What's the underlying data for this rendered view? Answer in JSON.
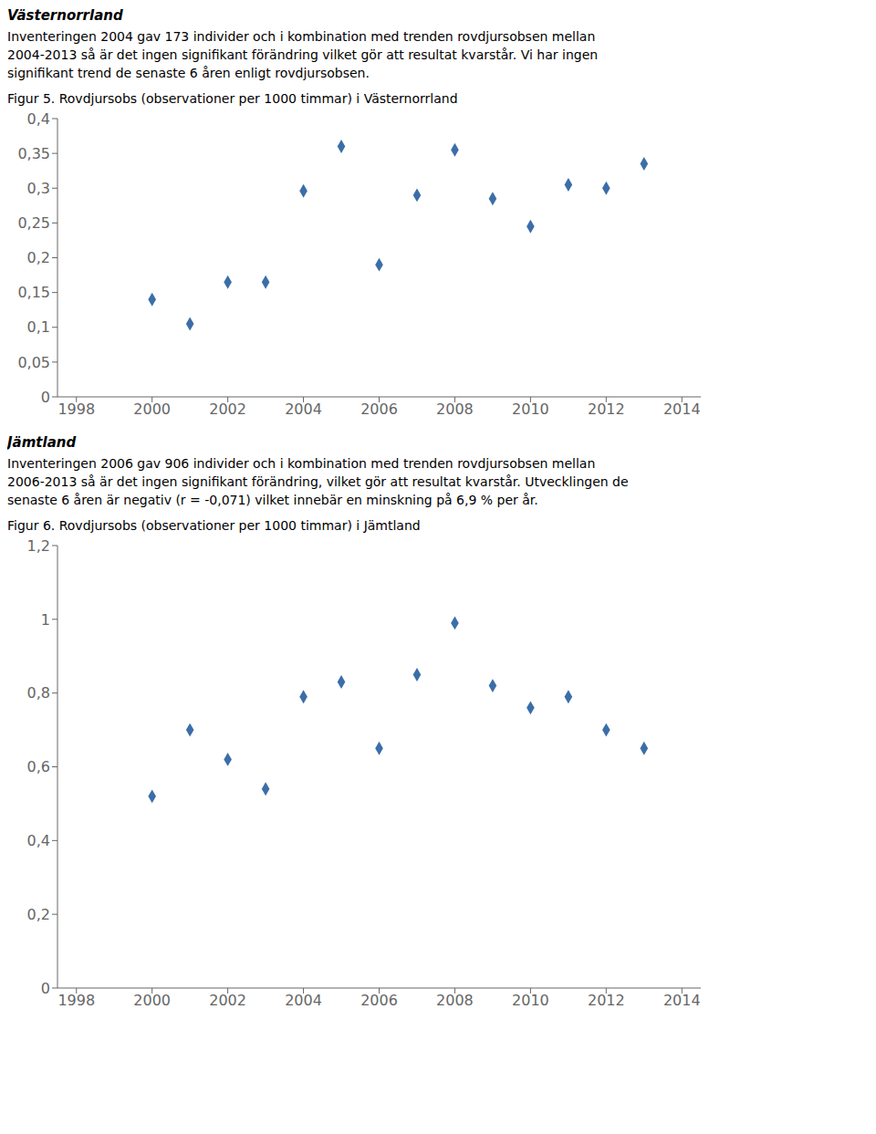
{
  "chart_data": [
    {
      "type": "scatter",
      "title": "Västernorrland",
      "annotations": [
        "Inventeringen 2004 gav 173 individer och i kombination med trenden rovdjursobsen mellan",
        "2004-2013 så är det ingen signifikant förändring vilket gör att resultat kvarstår. Vi har ingen",
        "signifikant trend de senaste 6 åren enligt rovdjursobsen."
      ],
      "subtitle": "Figur 5. Rovdjursobs (observationer per 1000 timmar) i Västernorrland",
      "x": [
        2000,
        2001,
        2002,
        2003,
        2004,
        2005,
        2006,
        2007,
        2008,
        2009,
        2010,
        2011,
        2012,
        2013
      ],
      "values": [
        0.14,
        0.105,
        0.165,
        0.165,
        0.296,
        0.36,
        0.19,
        0.29,
        0.355,
        0.285,
        0.245,
        0.305,
        0.3,
        0.335
      ],
      "color": "#3B6EA8",
      "marker": "diamond",
      "xlim": [
        1997.5,
        2014.5
      ],
      "xticks": [
        1998,
        2000,
        2002,
        2004,
        2006,
        2008,
        2010,
        2012,
        2014
      ],
      "ylim": [
        0,
        0.4
      ],
      "yticks": [
        0,
        {
          "value": 0.05,
          "label": "0,05"
        },
        {
          "value": 0.1,
          "label": "0,1"
        },
        {
          "value": 0.15,
          "label": "0,15"
        },
        {
          "value": 0.2,
          "label": "0,2"
        },
        {
          "value": 0.25,
          "label": "0,25"
        },
        {
          "value": 0.3,
          "label": "0,3"
        },
        {
          "value": 0.35,
          "label": "0,35"
        },
        {
          "value": 0.4,
          "label": "0,4"
        }
      ],
      "grid": false
    },
    {
      "type": "scatter",
      "title": "Jämtland",
      "annotations": [
        "Inventeringen 2006 gav 906 individer och i kombination med trenden rovdjursobsen mellan",
        "2006-2013 så är det ingen signifikant förändring, vilket gör att resultat kvarstår. Utvecklingen de",
        "senaste 6 åren är negativ (r = -0,071) vilket innebär en minskning på 6,9 % per år."
      ],
      "subtitle": "Figur 6. Rovdjursobs (observationer per 1000 timmar) i Jämtland",
      "x": [
        2000,
        2001,
        2002,
        2003,
        2004,
        2005,
        2006,
        2007,
        2008,
        2009,
        2010,
        2011,
        2012,
        2013
      ],
      "values": [
        0.52,
        0.7,
        0.62,
        0.54,
        0.79,
        0.83,
        0.65,
        0.85,
        0.99,
        0.82,
        0.76,
        0.79,
        0.7,
        0.65
      ],
      "color": "#3B6EA8",
      "marker": "diamond",
      "xlim": [
        1997.5,
        2014.5
      ],
      "xticks": [
        1998,
        2000,
        2002,
        2004,
        2006,
        2008,
        2010,
        2012,
        2014
      ],
      "ylim": [
        0,
        1.2
      ],
      "yticks": [
        0,
        {
          "value": 0.2,
          "label": "0,2"
        },
        {
          "value": 0.4,
          "label": "0,4"
        },
        {
          "value": 0.6,
          "label": "0,6"
        },
        {
          "value": 0.8,
          "label": "0,8"
        },
        1,
        {
          "value": 1.2,
          "label": "1,2"
        }
      ],
      "grid": false
    }
  ]
}
